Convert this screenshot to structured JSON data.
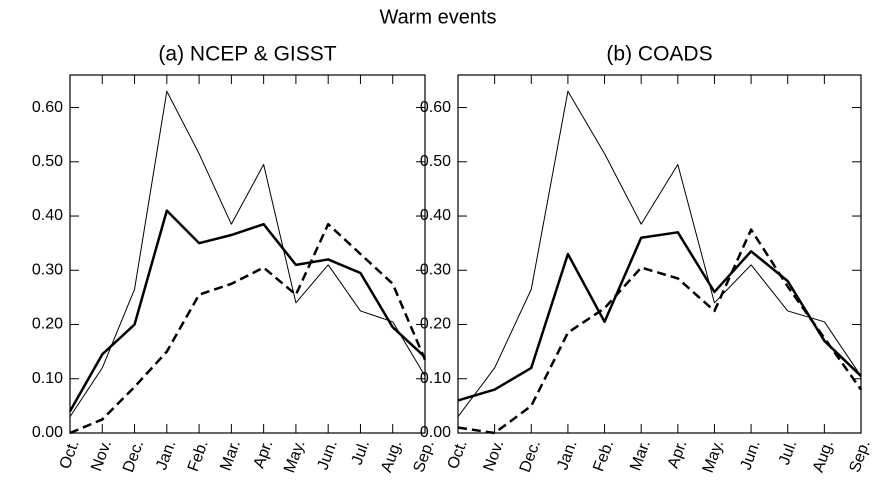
{
  "title": "Warm events",
  "chart_data": [
    {
      "type": "line",
      "title": "(a) NCEP & GISST",
      "categories": [
        "Oct.",
        "Nov.",
        "Dec.",
        "Jan.",
        "Feb.",
        "Mar.",
        "Apr.",
        "May.",
        "Jun.",
        "Jul.",
        "Aug.",
        "Sep."
      ],
      "ylim": [
        0,
        0.66
      ],
      "yticks": [
        {
          "value": 0,
          "label": "0.00"
        },
        {
          "value": 0.1,
          "label": "0.10"
        },
        {
          "value": 0.2,
          "label": "0.20"
        },
        {
          "value": 0.3,
          "label": "0.30"
        },
        {
          "value": 0.4,
          "label": "0.40"
        },
        {
          "value": 0.5,
          "label": "0.50"
        },
        {
          "value": 0.6,
          "label": "0.60"
        }
      ],
      "series": [
        {
          "color": "#000000",
          "width": 1,
          "dash": "none",
          "values": [
            0.03,
            0.12,
            0.265,
            0.63,
            0.515,
            0.385,
            0.495,
            0.24,
            0.31,
            0.225,
            0.205,
            0.105
          ]
        },
        {
          "color": "#000000",
          "width": 2.5,
          "dash": "none",
          "values": [
            0.04,
            0.145,
            0.2,
            0.41,
            0.35,
            0.365,
            0.385,
            0.31,
            0.32,
            0.295,
            0.195,
            0.14
          ]
        },
        {
          "color": "#000000",
          "width": 2.5,
          "dash": "9,5",
          "values": [
            0.0,
            0.025,
            0.085,
            0.15,
            0.255,
            0.275,
            0.305,
            0.255,
            0.385,
            0.33,
            0.275,
            0.135
          ]
        }
      ]
    },
    {
      "type": "line",
      "title": "(b) COADS",
      "categories": [
        "Oct.",
        "Nov.",
        "Dec.",
        "Jan.",
        "Feb.",
        "Mar.",
        "Apr.",
        "May.",
        "Jun.",
        "Jul.",
        "Aug.",
        "Sep."
      ],
      "ylim": [
        0,
        0.66
      ],
      "yticks": [
        {
          "value": 0,
          "label": "0.00"
        },
        {
          "value": 0.1,
          "label": "0.10"
        },
        {
          "value": 0.2,
          "label": "0.20"
        },
        {
          "value": 0.3,
          "label": "0.30"
        },
        {
          "value": 0.4,
          "label": "0.40"
        },
        {
          "value": 0.5,
          "label": "0.50"
        },
        {
          "value": 0.6,
          "label": "0.60"
        }
      ],
      "series": [
        {
          "color": "#000000",
          "width": 1,
          "dash": "none",
          "values": [
            0.03,
            0.12,
            0.265,
            0.63,
            0.515,
            0.385,
            0.495,
            0.24,
            0.31,
            0.225,
            0.205,
            0.105
          ]
        },
        {
          "color": "#000000",
          "width": 2.5,
          "dash": "none",
          "values": [
            0.06,
            0.08,
            0.12,
            0.33,
            0.205,
            0.36,
            0.37,
            0.26,
            0.335,
            0.28,
            0.17,
            0.105
          ]
        },
        {
          "color": "#000000",
          "width": 2.5,
          "dash": "9,5",
          "values": [
            0.01,
            0.0,
            0.05,
            0.185,
            0.23,
            0.305,
            0.285,
            0.225,
            0.375,
            0.27,
            0.175,
            0.08
          ]
        }
      ]
    }
  ]
}
